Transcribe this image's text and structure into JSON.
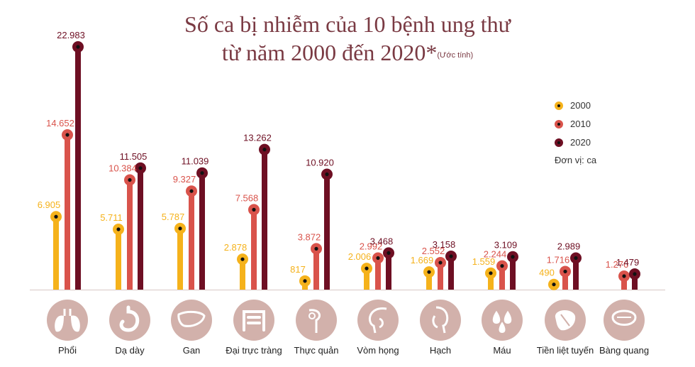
{
  "title": {
    "line1": "Số ca bị nhiễm của 10 bệnh ung thư",
    "line2": "từ năm 2000 đến 2020*",
    "note": "(Ước tính)"
  },
  "legend": {
    "items": [
      {
        "label": "2000",
        "color": "#f5b21b"
      },
      {
        "label": "2010",
        "color": "#d9534b"
      },
      {
        "label": "2020",
        "color": "#6e0f23"
      }
    ],
    "unit": "Đơn vị: ca"
  },
  "chart_data": {
    "type": "bar",
    "categories": [
      "Phổi",
      "Dạ dày",
      "Gan",
      "Đại trực tràng",
      "Thực quản",
      "Vòm họng",
      "Hạch",
      "Máu",
      "Tiền liệt tuyến",
      "Bàng quang"
    ],
    "icons": [
      "lungs-icon",
      "stomach-icon",
      "liver-icon",
      "intestine-icon",
      "esophagus-icon",
      "throat-icon",
      "lymph-node-icon",
      "blood-icon",
      "prostate-icon",
      "bladder-icon"
    ],
    "series": [
      {
        "name": "2000",
        "color": "#f5b21b",
        "values": [
          6905,
          5711,
          5787,
          2878,
          817,
          2006,
          1669,
          1559,
          490,
          null
        ],
        "labels": [
          "6.905",
          "5.711",
          "5.787",
          "2.878",
          "817",
          "2.006",
          "1.669",
          "1.559",
          "490",
          ""
        ]
      },
      {
        "name": "2010",
        "color": "#d9534b",
        "values": [
          14652,
          10384,
          9327,
          7568,
          3872,
          2992,
          2552,
          2244,
          1716,
          1276
        ],
        "labels": [
          "14.652",
          "10.384",
          "9.327",
          "7.568",
          "3.872",
          "2.992",
          "2.552",
          "2.244",
          "1.716",
          "1.276"
        ]
      },
      {
        "name": "2020",
        "color": "#6e0f23",
        "values": [
          22983,
          11505,
          11039,
          13262,
          10920,
          3468,
          3158,
          3109,
          2989,
          1479
        ],
        "labels": [
          "22.983",
          "11.505",
          "11.039",
          "13.262",
          "10.920",
          "3.468",
          "3.158",
          "3.109",
          "2.989",
          "1.479"
        ]
      }
    ],
    "ylim": [
      0,
      23500
    ],
    "grid": false,
    "legend_position": "right"
  }
}
